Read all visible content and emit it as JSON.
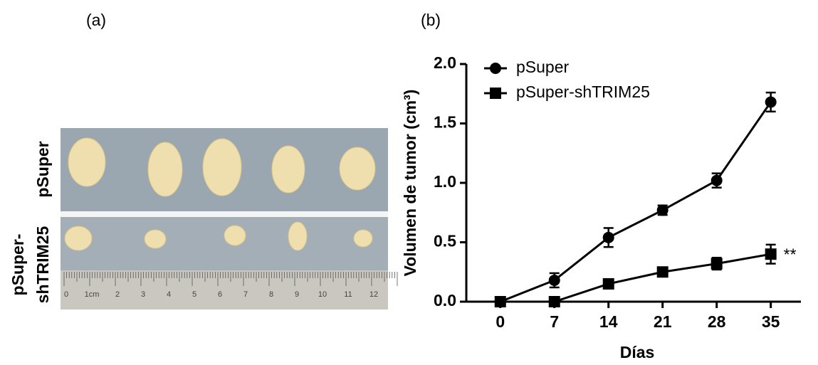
{
  "panel_a": {
    "label": "(a)",
    "row_labels": [
      "pSuper",
      [
        "pSuper-",
        "shTRIM25"
      ]
    ],
    "ruler_labels": [
      "0",
      "1cm",
      "2",
      "3",
      "4",
      "5",
      "6",
      "7",
      "8",
      "9",
      "10",
      "11",
      "12"
    ]
  },
  "chart_data": {
    "type": "line",
    "title": "(b)",
    "x_label": "Días",
    "y_label": "Volumen de tumor (cm³)",
    "x": [
      0,
      7,
      14,
      21,
      28,
      35
    ],
    "series": [
      {
        "name": "pSuper",
        "color": "#000000",
        "marker": "circle",
        "values": [
          0,
          0.18,
          0.54,
          0.77,
          1.02,
          1.68
        ],
        "errors": [
          0,
          0.06,
          0.08,
          0.04,
          0.06,
          0.08
        ]
      },
      {
        "name": "pSuper-shTRIM25",
        "color": "#000000",
        "marker": "square",
        "values": [
          0,
          0,
          0.15,
          0.25,
          0.32,
          0.4
        ],
        "errors": [
          0,
          0,
          0.02,
          0.02,
          0.05,
          0.08
        ]
      }
    ],
    "annotation": "**",
    "xlim": [
      -4.4,
      38.9
    ],
    "xticks": [
      0,
      7,
      14,
      21,
      28,
      35
    ],
    "ylim": [
      0,
      2
    ],
    "yticks": [
      {
        "value": 0,
        "label": "0.0"
      },
      0.5,
      {
        "value": 1,
        "label": "1.0"
      },
      1.5,
      {
        "value": 2,
        "label": "2.0"
      }
    ],
    "legend": "top-left",
    "grid": false
  }
}
